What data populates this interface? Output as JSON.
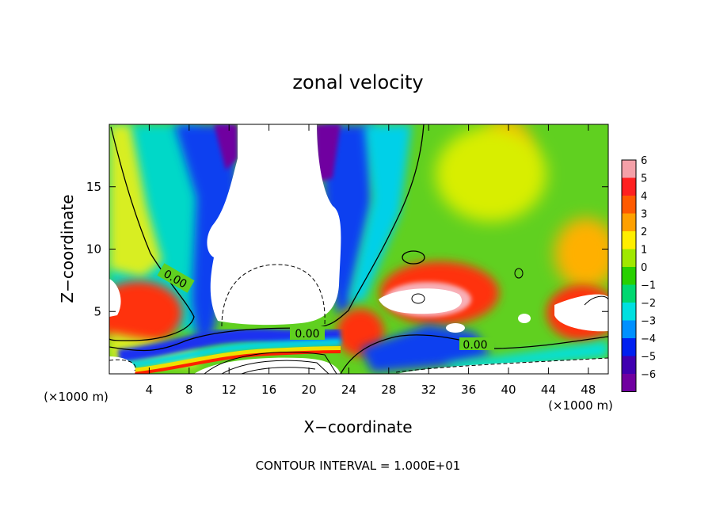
{
  "chart_data": {
    "type": "heatmap",
    "title": "zonal velocity",
    "xlabel": "X−coordinate",
    "ylabel": "Z−coordinate",
    "x_unit_left": "(×1000 m)",
    "x_unit_right": "(×1000 m)",
    "xlim": [
      0,
      50
    ],
    "ylim": [
      0,
      20
    ],
    "x_ticks": [
      4,
      8,
      12,
      16,
      20,
      24,
      28,
      32,
      36,
      40,
      44,
      48
    ],
    "y_ticks": [
      5,
      10,
      15
    ],
    "colorbar": {
      "levels": [
        6,
        5,
        4,
        3,
        2,
        1,
        0,
        -1,
        -2,
        -3,
        -4,
        -5,
        -6
      ],
      "labels": [
        "6",
        "5",
        "4",
        "3",
        "2",
        "1",
        "0",
        "−1",
        "−2",
        "−3",
        "−4",
        "−5",
        "−6"
      ],
      "colors": [
        "#f4a0a8",
        "#ff2020",
        "#ff5a00",
        "#ffa000",
        "#ffee00",
        "#a0e800",
        "#28d000",
        "#00d870",
        "#00e0e0",
        "#0090ff",
        "#0020f0",
        "#4000b0",
        "#7000a0"
      ]
    },
    "contour_labels": [
      "0.00",
      "0.00",
      "0.00"
    ],
    "contour_interval_text": "CONTOUR INTERVAL = 1.000E+01",
    "grid": false
  }
}
